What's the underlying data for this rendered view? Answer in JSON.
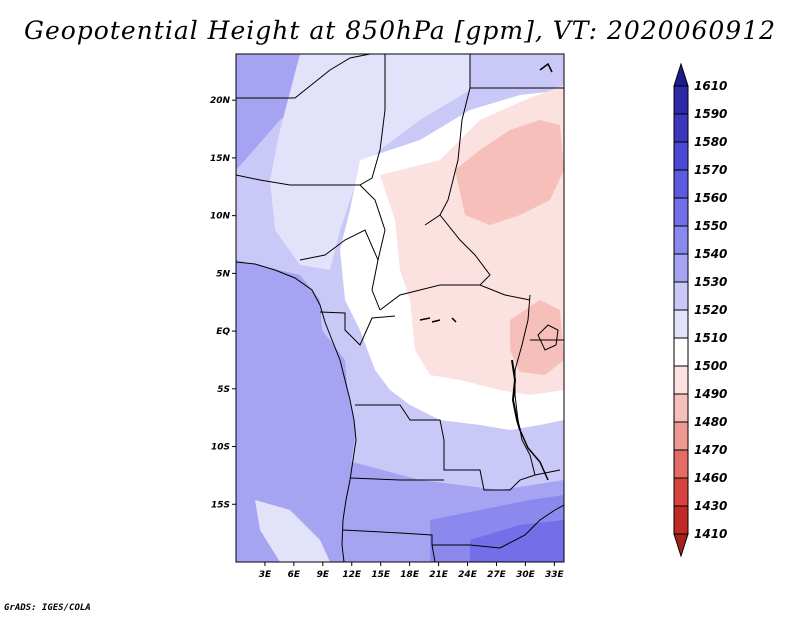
{
  "title": "Geopotential Height at 850hPa [gpm], VT: 2020060912",
  "credit": "GrADS: IGES/COLA",
  "map": {
    "lat_labels": [
      "20N",
      "15N",
      "10N",
      "5N",
      "EQ",
      "5S",
      "10S",
      "15S"
    ],
    "lon_labels": [
      "3E",
      "6E",
      "9E",
      "12E",
      "15E",
      "18E",
      "21E",
      "24E",
      "27E",
      "30E",
      "33E"
    ]
  },
  "colorbar": {
    "levels": [
      "1610",
      "1590",
      "1580",
      "1570",
      "1560",
      "1550",
      "1540",
      "1530",
      "1520",
      "1510",
      "1500",
      "1490",
      "1480",
      "1470",
      "1460",
      "1430",
      "1410"
    ],
    "colors": [
      "#211a8e",
      "#2f28a8",
      "#3d37c0",
      "#4c47d4",
      "#5d5ae0",
      "#736fe8",
      "#8b88ee",
      "#a6a4f2",
      "#c9c8f7",
      "#e2e2fb",
      "#ffffff",
      "#fbe1df",
      "#f6bfba",
      "#ee9992",
      "#e56c66",
      "#d8433d",
      "#c12a24",
      "#a8201b"
    ]
  },
  "chart_data": {
    "type": "heatmap",
    "title": "Geopotential Height at 850hPa [gpm], VT: 2020060912",
    "variable": "Geopotential Height at 850hPa",
    "units": "gpm",
    "valid_time": "2020060912",
    "x_range": [
      0,
      34
    ],
    "y_range": [
      -20,
      24
    ],
    "xticks": [
      3,
      6,
      9,
      12,
      15,
      18,
      21,
      24,
      27,
      30,
      33
    ],
    "yticks": [
      20,
      15,
      10,
      5,
      0,
      -5,
      -10,
      -15
    ],
    "color_levels": [
      1410,
      1430,
      1460,
      1470,
      1480,
      1490,
      1500,
      1510,
      1520,
      1530,
      1540,
      1550,
      1560,
      1570,
      1580,
      1590,
      1610
    ]
  }
}
